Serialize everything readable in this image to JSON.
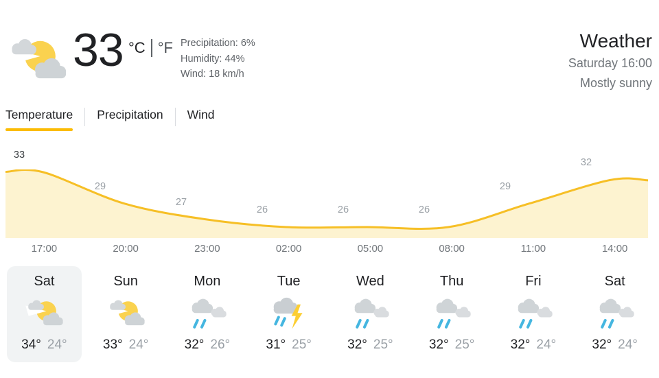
{
  "header": {
    "icon": "partly-sunny",
    "current_temp": "33",
    "unit_celsius": "°C",
    "unit_fahrenheit": "°F",
    "precipitation": "Precipitation: 6%",
    "humidity": "Humidity: 44%",
    "wind": "Wind: 18 km/h",
    "title": "Weather",
    "datetime": "Saturday 16:00",
    "condition": "Mostly sunny"
  },
  "tabs": [
    {
      "label": "Temperature",
      "active": true
    },
    {
      "label": "Precipitation",
      "active": false
    },
    {
      "label": "Wind",
      "active": false
    }
  ],
  "chart_data": {
    "type": "area",
    "x": [
      "17:00",
      "20:00",
      "23:00",
      "02:00",
      "05:00",
      "08:00",
      "11:00",
      "14:00"
    ],
    "series": [
      {
        "name": "Temperature (°C)",
        "values": [
          33,
          29,
          27,
          26,
          26,
          26,
          29,
          32
        ]
      }
    ],
    "point_labels": [
      "33",
      "29",
      "27",
      "26",
      "26",
      "26",
      "29",
      "32"
    ],
    "xlabel": "",
    "ylabel": "",
    "ylim": [
      26,
      33
    ],
    "grid": false,
    "legend": false,
    "line_color": "#f6bf26",
    "fill_color": "#fdf3d0"
  },
  "forecast": {
    "days": [
      {
        "name": "Sat",
        "icon": "partly-sunny",
        "high": "34°",
        "low": "24°",
        "selected": true
      },
      {
        "name": "Sun",
        "icon": "partly-sunny",
        "high": "33°",
        "low": "24°",
        "selected": false
      },
      {
        "name": "Mon",
        "icon": "rain",
        "high": "32°",
        "low": "26°",
        "selected": false
      },
      {
        "name": "Tue",
        "icon": "thunderstorm",
        "high": "31°",
        "low": "25°",
        "selected": false
      },
      {
        "name": "Wed",
        "icon": "rain",
        "high": "32°",
        "low": "25°",
        "selected": false
      },
      {
        "name": "Thu",
        "icon": "rain",
        "high": "32°",
        "low": "25°",
        "selected": false
      },
      {
        "name": "Fri",
        "icon": "rain",
        "high": "32°",
        "low": "24°",
        "selected": false
      },
      {
        "name": "Sat",
        "icon": "rain",
        "high": "32°",
        "low": "24°",
        "selected": false
      }
    ]
  },
  "colors": {
    "accent_yellow": "#fbbc04",
    "chart_line": "#f6bf26",
    "chart_fill": "#fdf3d0",
    "rain_blue": "#45b6e0",
    "lightning_yellow": "#fcce33",
    "selected_day_bg": "#f1f3f4"
  }
}
